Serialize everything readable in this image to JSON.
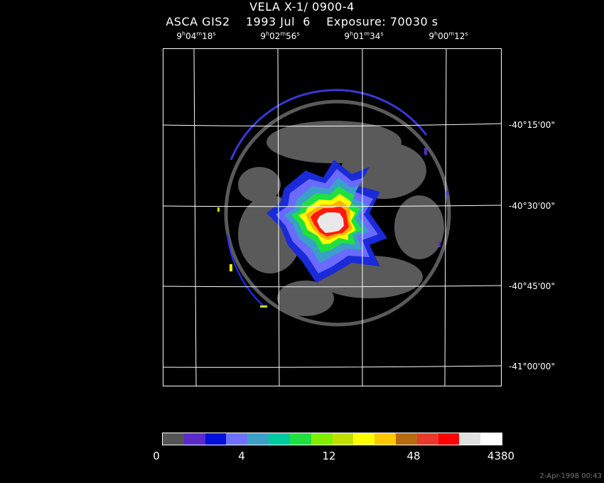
{
  "header": {
    "title": "VELA X-1/ 0900-4",
    "subtitle": "ASCA GIS2    1993 Jul  6    Exposure: 70030 s"
  },
  "axes": {
    "ra_ticks": [
      {
        "h": "9",
        "m": "04",
        "s": "18"
      },
      {
        "h": "9",
        "m": "02",
        "s": "56"
      },
      {
        "h": "9",
        "m": "01",
        "s": "34"
      },
      {
        "h": "9",
        "m": "00",
        "s": "12"
      }
    ],
    "dec_ticks": [
      "-40°15'00\"",
      "-40°30'00\"",
      "-40°45'00\"",
      "-41°00'00\""
    ]
  },
  "colorbar": {
    "colors": [
      "#555555",
      "#5a2bc8",
      "#0010d8",
      "#7070ff",
      "#3aa0c8",
      "#00c8a0",
      "#20e040",
      "#80f000",
      "#c0e000",
      "#ffff00",
      "#ffc800",
      "#b86a10",
      "#e83a28",
      "#ff0000",
      "#e0e0e0",
      "#ffffff"
    ],
    "labels": [
      "0",
      "4",
      "12",
      "48",
      "4380"
    ]
  },
  "footer": {
    "timestamp": "2-Apr-1998 00:43"
  }
}
